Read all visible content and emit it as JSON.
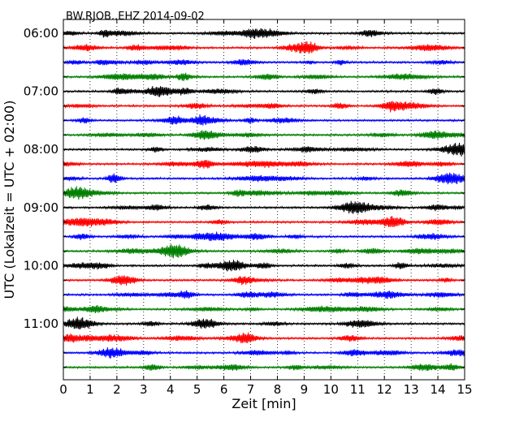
{
  "chart_data": {
    "type": "line",
    "title": "BW.RJOB..EHZ 2014-09-02",
    "xlabel": "Zeit  [min]",
    "ylabel": "UTC (Lokalzeit = UTC + 02:00)",
    "xlim": [
      0,
      15
    ],
    "x_ticks": [
      0,
      1,
      2,
      3,
      4,
      5,
      6,
      7,
      8,
      9,
      10,
      11,
      12,
      13,
      14,
      15
    ],
    "x_tick_labels": [
      "0",
      "1",
      "2",
      "3",
      "4",
      "5",
      "6",
      "7",
      "8",
      "9",
      "10",
      "11",
      "12",
      "13",
      "14",
      "15"
    ],
    "grid": "vertical dotted",
    "hour_labels": [
      "06:00",
      "07:00",
      "08:00",
      "09:00",
      "10:00",
      "11:00"
    ],
    "trace_interval_minutes": 15,
    "trace_colors": [
      "#000000",
      "#ff0000",
      "#0000ff",
      "#008000"
    ],
    "series": [
      {
        "start": "06:00"
      },
      {
        "start": "06:15"
      },
      {
        "start": "06:30"
      },
      {
        "start": "06:45"
      },
      {
        "start": "07:00"
      },
      {
        "start": "07:15"
      },
      {
        "start": "07:30"
      },
      {
        "start": "07:45"
      },
      {
        "start": "08:00"
      },
      {
        "start": "08:15"
      },
      {
        "start": "08:30"
      },
      {
        "start": "08:45"
      },
      {
        "start": "09:00"
      },
      {
        "start": "09:15"
      },
      {
        "start": "09:30"
      },
      {
        "start": "09:45"
      },
      {
        "start": "10:00"
      },
      {
        "start": "10:15"
      },
      {
        "start": "10:30"
      },
      {
        "start": "10:45"
      },
      {
        "start": "11:00"
      },
      {
        "start": "11:15"
      },
      {
        "start": "11:30"
      },
      {
        "start": "11:45"
      }
    ]
  }
}
